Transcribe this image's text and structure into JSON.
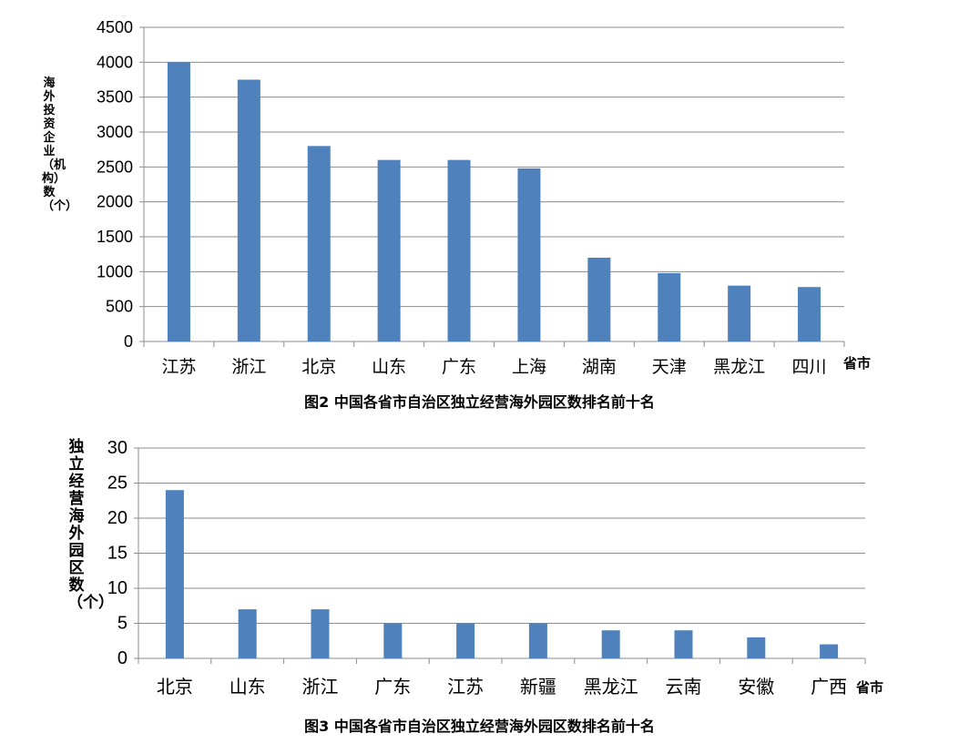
{
  "chart_data": [
    {
      "type": "bar",
      "title": "图2 中国各省市自治区独立经营海外园区数排名前十名",
      "ylabel": "海外投资企业（机构）数（个）",
      "xunit": "省市",
      "categories": [
        "江苏",
        "浙江",
        "北京",
        "山东",
        "广东",
        "上海",
        "湖南",
        "天津",
        "黑龙江",
        "四川"
      ],
      "values": [
        4000,
        3750,
        2800,
        2600,
        2600,
        2480,
        1200,
        980,
        800,
        780
      ],
      "ylim": [
        0,
        4500
      ],
      "yticks": [
        0,
        500,
        1000,
        1500,
        2000,
        2500,
        3000,
        3500,
        4000,
        4500
      ],
      "grid": true,
      "bar_color": "#4F81BD"
    },
    {
      "type": "bar",
      "title": "图3 中国各省市自治区独立经营海外园区数排名前十名",
      "ylabel": "独立经营海外园区数（个）",
      "xunit": "省市",
      "categories": [
        "北京",
        "山东",
        "浙江",
        "广东",
        "江苏",
        "新疆",
        "黑龙江",
        "云南",
        "安徽",
        "广西"
      ],
      "values": [
        24,
        7,
        7,
        5,
        5,
        5,
        4,
        4,
        3,
        2
      ],
      "ylim": [
        0,
        30
      ],
      "yticks": [
        0,
        5,
        10,
        15,
        20,
        25,
        30
      ],
      "grid": true,
      "bar_color": "#4F81BD"
    }
  ]
}
